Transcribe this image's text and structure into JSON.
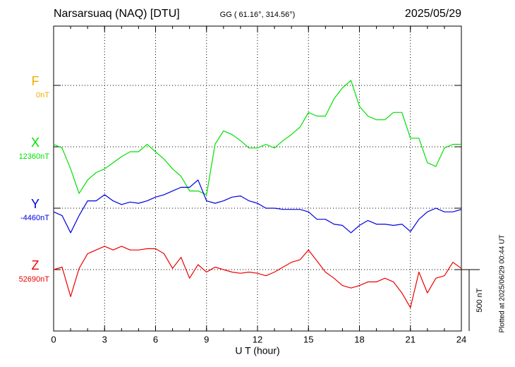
{
  "chart_data": {
    "type": "line",
    "title": "Narsarsuaq (NAQ)  [DTU]",
    "subtitle": "GG ( 61.16°, 314.56°)",
    "date": "2025/05/29",
    "x_label": "U T (hour)",
    "footnote": "Plotted at 2025/06/29 00:44 UT",
    "scale": {
      "value": 500,
      "label": "500 nT"
    },
    "xlim": [
      0,
      24
    ],
    "xticks": [
      0,
      3,
      6,
      9,
      12,
      15,
      18,
      21,
      24
    ],
    "grid": true,
    "x": [
      0,
      0.5,
      1,
      1.5,
      2,
      2.5,
      3,
      3.5,
      4,
      4.5,
      5,
      5.5,
      6,
      6.5,
      7,
      7.5,
      8,
      8.5,
      9,
      9.5,
      10,
      10.5,
      11,
      11.5,
      12,
      12.5,
      13,
      13.5,
      14,
      14.5,
      15,
      15.5,
      16,
      16.5,
      17,
      17.5,
      18,
      18.5,
      19,
      19.5,
      20,
      20.5,
      21,
      21.5,
      22,
      22.5,
      23,
      23.5,
      24
    ],
    "series": [
      {
        "name": "F",
        "color": "#f0b000",
        "baseline": {
          "value": 0,
          "label": "0nT"
        }
      },
      {
        "name": "X",
        "color": "#00e000",
        "baseline": {
          "value": 12360,
          "label": "12360nT"
        },
        "values": [
          12380,
          12350,
          12180,
          11980,
          12090,
          12150,
          12180,
          12230,
          12280,
          12320,
          12320,
          12380,
          12320,
          12260,
          12180,
          12120,
          12000,
          12000,
          11970,
          12380,
          12490,
          12460,
          12410,
          12350,
          12350,
          12380,
          12350,
          12410,
          12460,
          12520,
          12640,
          12610,
          12610,
          12750,
          12840,
          12900,
          12690,
          12610,
          12580,
          12580,
          12640,
          12640,
          12430,
          12430,
          12230,
          12200,
          12350,
          12380,
          12380
        ]
      },
      {
        "name": "Y",
        "color": "#0000e0",
        "baseline": {
          "value": -4460,
          "label": "-4460nT"
        },
        "values": [
          -4490,
          -4520,
          -4660,
          -4520,
          -4400,
          -4400,
          -4350,
          -4400,
          -4430,
          -4410,
          -4420,
          -4400,
          -4370,
          -4350,
          -4320,
          -4290,
          -4290,
          -4230,
          -4400,
          -4420,
          -4400,
          -4370,
          -4360,
          -4400,
          -4420,
          -4460,
          -4460,
          -4470,
          -4470,
          -4470,
          -4490,
          -4550,
          -4550,
          -4590,
          -4600,
          -4660,
          -4600,
          -4560,
          -4590,
          -4590,
          -4600,
          -4590,
          -4650,
          -4550,
          -4490,
          -4460,
          -4490,
          -4490,
          -4470
        ]
      },
      {
        "name": "Z",
        "color": "#ee0000",
        "baseline": {
          "value": 52690,
          "label": "52690nT"
        },
        "values": [
          52690,
          52710,
          52470,
          52700,
          52820,
          52850,
          52880,
          52850,
          52880,
          52850,
          52850,
          52860,
          52860,
          52820,
          52700,
          52790,
          52620,
          52730,
          52670,
          52710,
          52690,
          52670,
          52660,
          52670,
          52660,
          52640,
          52670,
          52710,
          52750,
          52770,
          52850,
          52760,
          52670,
          52620,
          52560,
          52540,
          52560,
          52590,
          52590,
          52620,
          52590,
          52500,
          52380,
          52670,
          52500,
          52620,
          52640,
          52750,
          52700
        ]
      }
    ]
  }
}
